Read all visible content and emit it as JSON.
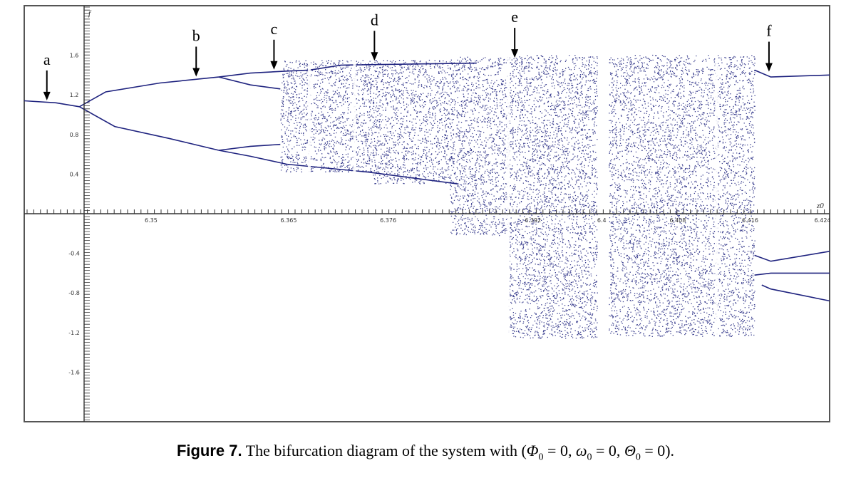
{
  "figure": {
    "caption_label": "Figure 7.",
    "caption_text": " The bifurcation diagram of the system with (",
    "caption_sym1": "Φ",
    "caption_sym2": "ω",
    "caption_sym3": "Θ",
    "caption_sub": "0",
    "caption_eq": " = 0, ",
    "caption_end": " = 0)."
  },
  "chart_data": {
    "type": "scatter",
    "title": "",
    "xlabel": "z0",
    "ylabel": "f",
    "xlim": [
      6.337,
      6.426
    ],
    "ylim": [
      -2.1,
      2.1
    ],
    "x_ticks": [
      {
        "value": 6.35,
        "label": "6.35"
      },
      {
        "value": 6.365,
        "label": "6.365"
      },
      {
        "value": 6.376,
        "label": "6.376"
      },
      {
        "value": 6.392,
        "label": "6.392"
      },
      {
        "value": 6.4,
        "label": "6.4"
      },
      {
        "value": 6.408,
        "label": "6.408"
      },
      {
        "value": 6.416,
        "label": "6.416"
      },
      {
        "value": 6.424,
        "label": "6.424"
      }
    ],
    "y_ticks": [
      {
        "value": 1.6,
        "label": "1.6"
      },
      {
        "value": 1.2,
        "label": "1.2"
      },
      {
        "value": 0.8,
        "label": "0.8"
      },
      {
        "value": 0.4,
        "label": "0.4"
      },
      {
        "value": -0.4,
        "label": "-0.4"
      },
      {
        "value": -0.8,
        "label": "-0.8"
      },
      {
        "value": -1.2,
        "label": "-1.2"
      },
      {
        "value": -1.6,
        "label": "-1.6"
      }
    ],
    "annotations": [
      {
        "label": "a",
        "x": 6.3395,
        "y": 1.13
      },
      {
        "label": "b",
        "x": 6.356,
        "y": 1.37
      },
      {
        "label": "c",
        "x": 6.3646,
        "y": 1.44
      },
      {
        "label": "d",
        "x": 6.3757,
        "y": 1.53
      },
      {
        "label": "e",
        "x": 6.3912,
        "y": 1.56
      },
      {
        "label": "f",
        "x": 6.4193,
        "y": 1.42
      }
    ],
    "marker_color": "#1f237f",
    "grid": false,
    "branches": [
      {
        "name": "period-1",
        "points": [
          [
            6.337,
            1.14
          ],
          [
            6.3405,
            1.12
          ],
          [
            6.3431,
            1.08
          ]
        ]
      },
      {
        "name": "period-2 upper",
        "points": [
          [
            6.3431,
            1.08
          ],
          [
            6.346,
            1.23
          ],
          [
            6.352,
            1.32
          ],
          [
            6.3585,
            1.38
          ]
        ]
      },
      {
        "name": "period-2 lower",
        "points": [
          [
            6.3431,
            1.08
          ],
          [
            6.347,
            0.88
          ],
          [
            6.353,
            0.76
          ],
          [
            6.3585,
            0.64
          ]
        ]
      },
      {
        "name": "upper branch (p4 out)",
        "points": [
          [
            6.3585,
            1.38
          ],
          [
            6.362,
            1.42
          ],
          [
            6.366,
            1.44
          ],
          [
            6.3685,
            1.45
          ],
          [
            6.372,
            1.5
          ],
          [
            6.387,
            1.52
          ]
        ]
      },
      {
        "name": "upper branch (p4 in)",
        "points": [
          [
            6.3585,
            1.38
          ],
          [
            6.362,
            1.3
          ],
          [
            6.3653,
            1.26
          ]
        ]
      },
      {
        "name": "lower branch (p4 out)",
        "points": [
          [
            6.3585,
            0.64
          ],
          [
            6.362,
            0.68
          ],
          [
            6.3653,
            0.7
          ]
        ]
      },
      {
        "name": "lower branch (p4 in)",
        "points": [
          [
            6.3585,
            0.64
          ],
          [
            6.362,
            0.58
          ],
          [
            6.366,
            0.5
          ],
          [
            6.375,
            0.42
          ],
          [
            6.385,
            0.3
          ]
        ]
      },
      {
        "name": "period-3 window (upper)",
        "points": [
          [
            6.4177,
            1.45
          ],
          [
            6.4195,
            1.38
          ],
          [
            6.426,
            1.4
          ]
        ]
      },
      {
        "name": "period-3 window (middle)",
        "points": [
          [
            6.4177,
            -0.42
          ],
          [
            6.4195,
            -0.48
          ],
          [
            6.426,
            -0.38
          ]
        ]
      },
      {
        "name": "period-3 window (lower)",
        "points": [
          [
            6.4177,
            -0.62
          ],
          [
            6.4195,
            -0.6
          ],
          [
            6.426,
            -0.6
          ]
        ]
      },
      {
        "name": "period-3 window (bottom)",
        "points": [
          [
            6.4185,
            -0.72
          ],
          [
            6.4195,
            -0.76
          ],
          [
            6.426,
            -0.88
          ]
        ]
      }
    ],
    "chaotic_regions": [
      {
        "x_range": [
          6.3653,
          6.3755
        ],
        "y_range": [
          0.42,
          1.55
        ]
      },
      {
        "x_range": [
          6.3755,
          6.384
        ],
        "y_range": [
          0.3,
          1.55
        ]
      },
      {
        "x_range": [
          6.384,
          6.3905
        ],
        "y_range": [
          -0.22,
          1.58
        ]
      },
      {
        "x_range": [
          6.3905,
          6.4003
        ],
        "y_range": [
          -1.26,
          1.6
        ]
      },
      {
        "x_range": [
          6.4016,
          6.4177
        ],
        "y_range": [
          -1.24,
          1.6
        ]
      }
    ],
    "periodic_windows_x": [
      6.3685,
      6.3735,
      6.3905,
      6.4009,
      6.4135
    ]
  }
}
